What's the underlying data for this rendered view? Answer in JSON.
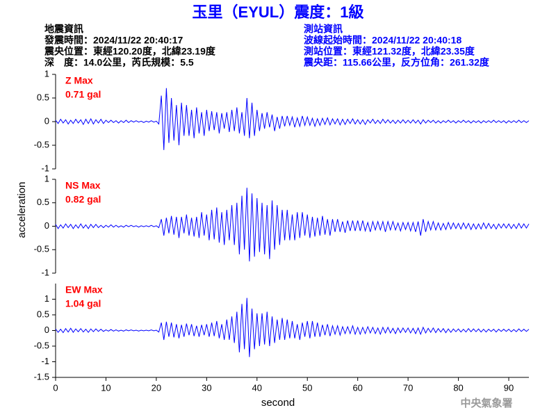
{
  "title": "玉里（EYUL）震度：1級",
  "info_left": [
    "地震資訊",
    "發震時間：2024/11/22 20:40:17",
    "震央位置：東經120.20度，北緯23.19度",
    "深　度：14.0公里，芮氏規模：5.5"
  ],
  "info_right": [
    "測站資訊",
    "波線起始時間：2024/11/22 20:40:18",
    "測站位置：東經121.32度，北緯23.35度",
    "震央距：115.66公里，反方位角：261.32度"
  ],
  "footer": "中央氣象署",
  "chart_data": {
    "type": "line",
    "xlabel": "second",
    "ylabel": "acceleration",
    "color": "#0000ff",
    "label_color": "#ff0000",
    "xlim": [
      0,
      94
    ],
    "xticks": [
      0,
      10,
      20,
      30,
      40,
      50,
      60,
      70,
      80,
      90
    ],
    "x": [
      0,
      0.5,
      1,
      1.5,
      2,
      2.5,
      3,
      3.5,
      4,
      4.5,
      5,
      5.5,
      6,
      6.5,
      7,
      7.5,
      8,
      8.5,
      9,
      9.5,
      10,
      10.5,
      11,
      11.5,
      12,
      12.5,
      13,
      13.5,
      14,
      14.5,
      15,
      15.5,
      16,
      16.5,
      17,
      17.5,
      18,
      18.5,
      19,
      19.5,
      20,
      20.5,
      21,
      21.5,
      22,
      22.5,
      23,
      23.5,
      24,
      24.5,
      25,
      25.5,
      26,
      26.5,
      27,
      27.5,
      28,
      28.5,
      29,
      29.5,
      30,
      30.5,
      31,
      31.5,
      32,
      32.5,
      33,
      33.5,
      34,
      34.5,
      35,
      35.5,
      36,
      36.5,
      37,
      37.5,
      38,
      38.5,
      39,
      39.5,
      40,
      40.5,
      41,
      41.5,
      42,
      42.5,
      43,
      43.5,
      44,
      44.5,
      45,
      45.5,
      46,
      46.5,
      47,
      47.5,
      48,
      48.5,
      49,
      49.5,
      50,
      50.5,
      51,
      51.5,
      52,
      52.5,
      53,
      53.5,
      54,
      54.5,
      55,
      55.5,
      56,
      56.5,
      57,
      57.5,
      58,
      58.5,
      59,
      59.5,
      60,
      60.5,
      61,
      61.5,
      62,
      62.5,
      63,
      63.5,
      64,
      64.5,
      65,
      65.5,
      66,
      66.5,
      67,
      67.5,
      68,
      68.5,
      69,
      69.5,
      70,
      70.5,
      71,
      71.5,
      72,
      72.5,
      73,
      73.5,
      74,
      74.5,
      75,
      75.5,
      76,
      76.5,
      77,
      77.5,
      78,
      78.5,
      79,
      79.5,
      80,
      80.5,
      81,
      81.5,
      82,
      82.5,
      83,
      83.5,
      84,
      84.5,
      85,
      85.5,
      86,
      86.5,
      87,
      87.5,
      88,
      88.5,
      89,
      89.5,
      90,
      90.5,
      91,
      91.5,
      92,
      92.5,
      93,
      93.5,
      94
    ],
    "panels": [
      {
        "label": "Z Max",
        "max_label": "0.71 gal",
        "ylim": [
          -1,
          1
        ],
        "yticks": [
          -1,
          -0.5,
          0,
          0.5,
          1
        ],
        "values": [
          0.03,
          -0.04,
          0.05,
          -0.03,
          0.04,
          -0.05,
          0.03,
          -0.04,
          0.05,
          -0.03,
          0.04,
          -0.06,
          0.05,
          -0.04,
          0.06,
          -0.05,
          0.04,
          -0.03,
          0.05,
          -0.04,
          0.03,
          -0.02,
          0.03,
          -0.02,
          0.02,
          -0.03,
          0.02,
          -0.02,
          0.03,
          -0.02,
          0.02,
          -0.01,
          0.02,
          -0.01,
          0.01,
          -0.02,
          0.01,
          -0.01,
          0.02,
          -0.01,
          0.01,
          -0.05,
          0.55,
          -0.6,
          0.71,
          -0.45,
          0.5,
          -0.4,
          0.35,
          -0.5,
          0.4,
          -0.3,
          0.35,
          -0.3,
          0.25,
          -0.35,
          0.3,
          -0.25,
          0.2,
          -0.3,
          0.25,
          -0.2,
          0.22,
          -0.18,
          0.2,
          -0.25,
          0.18,
          -0.15,
          0.2,
          -0.22,
          0.25,
          -0.2,
          0.3,
          -0.25,
          0.2,
          -0.3,
          0.5,
          -0.35,
          0.4,
          -0.3,
          0.25,
          -0.2,
          0.18,
          -0.15,
          0.2,
          -0.12,
          0.15,
          -0.2,
          0.1,
          -0.15,
          0.12,
          -0.1,
          0.12,
          -0.08,
          0.1,
          -0.12,
          0.08,
          -0.1,
          0.12,
          -0.08,
          0.1,
          -0.08,
          0.07,
          -0.1,
          0.06,
          -0.08,
          0.07,
          -0.06,
          0.08,
          -0.07,
          0.06,
          -0.05,
          0.06,
          -0.07,
          0.05,
          -0.06,
          0.05,
          -0.04,
          0.06,
          -0.05,
          0.04,
          -0.05,
          0.04,
          -0.06,
          0.04,
          -0.03,
          0.05,
          -0.04,
          0.03,
          -0.04,
          0.05,
          -0.03,
          0.04,
          -0.03,
          0.03,
          -0.04,
          0.03,
          -0.03,
          0.04,
          -0.03,
          0.03,
          -0.03,
          0.04,
          -0.03,
          0.03,
          -0.05,
          0.04,
          -0.03,
          0.03,
          -0.02,
          0.03,
          -0.03,
          0.02,
          -0.03,
          0.02,
          -0.02,
          0.03,
          -0.02,
          0.02,
          -0.03,
          0.02,
          -0.02,
          0.03,
          -0.02,
          0.02,
          -0.03,
          0.02,
          -0.02,
          0.02,
          -0.03,
          0.02,
          -0.02,
          0.02,
          -0.02,
          0.03,
          -0.02,
          0.02,
          -0.02,
          0.02,
          -0.03,
          0.02,
          -0.02,
          0.02,
          -0.02,
          0.03,
          -0.02,
          0.02,
          -0.02,
          0.02
        ]
      },
      {
        "label": "NS Max",
        "max_label": "0.82 gal",
        "ylim": [
          -1,
          1
        ],
        "yticks": [
          -1,
          -0.5,
          0,
          0.5,
          1
        ],
        "values": [
          0.04,
          -0.05,
          0.03,
          -0.04,
          0.05,
          -0.03,
          0.04,
          -0.05,
          0.03,
          -0.04,
          0.05,
          -0.04,
          0.03,
          -0.05,
          0.04,
          -0.03,
          0.04,
          -0.03,
          0.02,
          -0.03,
          0.02,
          -0.02,
          0.03,
          -0.02,
          0.02,
          -0.02,
          0.01,
          -0.02,
          0.02,
          -0.01,
          0.02,
          -0.01,
          0.01,
          -0.02,
          0.01,
          -0.01,
          0.01,
          -0.01,
          0.02,
          -0.01,
          0.01,
          -0.03,
          0.15,
          -0.2,
          0.18,
          -0.15,
          0.22,
          -0.18,
          0.2,
          -0.25,
          0.2,
          -0.15,
          0.25,
          -0.2,
          0.18,
          -0.22,
          0.2,
          -0.25,
          0.3,
          -0.2,
          0.25,
          -0.3,
          0.35,
          -0.28,
          0.4,
          -0.35,
          0.3,
          -0.4,
          0.35,
          -0.3,
          0.45,
          -0.4,
          0.5,
          -0.6,
          0.65,
          -0.5,
          0.82,
          -0.75,
          0.7,
          -0.65,
          0.6,
          -0.55,
          0.5,
          -0.6,
          0.45,
          -0.7,
          0.55,
          -0.5,
          0.45,
          -0.4,
          0.35,
          -0.3,
          0.35,
          -0.3,
          0.25,
          -0.3,
          0.3,
          -0.25,
          0.3,
          -0.2,
          0.25,
          -0.25,
          0.2,
          -0.22,
          0.18,
          -0.2,
          0.22,
          -0.18,
          0.15,
          -0.2,
          0.15,
          -0.12,
          0.15,
          -0.12,
          0.1,
          -0.14,
          0.12,
          -0.1,
          0.12,
          -0.1,
          0.12,
          -0.1,
          0.12,
          -0.1,
          0.08,
          -0.12,
          0.1,
          -0.08,
          0.1,
          -0.08,
          0.1,
          -0.12,
          0.1,
          -0.08,
          0.1,
          -0.08,
          0.07,
          -0.1,
          0.08,
          -0.07,
          0.08,
          -0.1,
          0.08,
          -0.12,
          0.1,
          -0.2,
          0.15,
          -0.12,
          0.1,
          -0.08,
          0.1,
          -0.08,
          0.07,
          -0.08,
          0.06,
          -0.07,
          0.08,
          -0.06,
          0.07,
          -0.05,
          0.06,
          -0.06,
          0.07,
          -0.05,
          0.06,
          -0.07,
          0.05,
          -0.06,
          0.05,
          -0.06,
          0.07,
          -0.05,
          0.06,
          -0.05,
          0.04,
          -0.06,
          0.05,
          -0.04,
          0.05,
          -0.04,
          0.05,
          -0.05,
          0.04,
          -0.05,
          0.06,
          -0.04,
          0.05,
          -0.04,
          0.05
        ]
      },
      {
        "label": "EW Max",
        "max_label": "1.04 gal",
        "ylim": [
          -1.5,
          1.5
        ],
        "yticks": [
          -1.5,
          -1,
          -0.5,
          0,
          0.5,
          1
        ],
        "values": [
          0.05,
          -0.06,
          0.04,
          -0.07,
          0.06,
          -0.05,
          0.07,
          -0.06,
          0.05,
          -0.04,
          0.06,
          -0.05,
          0.04,
          -0.06,
          0.05,
          -0.04,
          0.05,
          -0.03,
          0.04,
          -0.03,
          0.02,
          -0.02,
          0.03,
          -0.02,
          0.02,
          -0.02,
          0.01,
          -0.02,
          0.02,
          -0.01,
          0.02,
          -0.01,
          0.01,
          -0.02,
          0.01,
          -0.01,
          0.01,
          -0.01,
          0.02,
          -0.01,
          0.01,
          -0.05,
          0.25,
          -0.3,
          0.28,
          -0.2,
          0.25,
          -0.22,
          0.2,
          -0.25,
          0.18,
          -0.2,
          0.22,
          -0.15,
          0.2,
          -0.18,
          0.15,
          -0.2,
          0.18,
          -0.15,
          0.2,
          -0.2,
          0.25,
          -0.18,
          0.3,
          -0.25,
          0.2,
          -0.3,
          0.35,
          -0.3,
          0.45,
          -0.4,
          0.6,
          -0.7,
          0.85,
          -0.6,
          1.04,
          -0.85,
          0.7,
          -0.6,
          0.55,
          -0.5,
          0.55,
          -0.45,
          0.6,
          -0.5,
          0.45,
          -0.4,
          0.35,
          -0.3,
          0.4,
          -0.3,
          0.35,
          -0.25,
          0.3,
          -0.25,
          0.2,
          -0.3,
          0.25,
          -0.2,
          0.3,
          -0.25,
          0.3,
          -0.2,
          0.25,
          -0.2,
          0.18,
          -0.15,
          0.2,
          -0.18,
          0.15,
          -0.12,
          0.15,
          -0.15,
          0.12,
          -0.1,
          0.12,
          -0.1,
          0.15,
          -0.12,
          0.1,
          -0.12,
          0.1,
          -0.1,
          0.12,
          -0.08,
          0.1,
          -0.1,
          0.08,
          -0.12,
          0.1,
          -0.08,
          0.1,
          -0.08,
          0.07,
          -0.1,
          0.08,
          -0.07,
          0.08,
          -0.06,
          0.08,
          -0.08,
          0.07,
          -0.1,
          0.08,
          -0.12,
          0.1,
          -0.08,
          0.07,
          -0.06,
          0.08,
          -0.07,
          0.06,
          -0.05,
          0.06,
          -0.07,
          0.05,
          -0.06,
          0.05,
          -0.04,
          0.05,
          -0.05,
          0.04,
          -0.05,
          0.06,
          -0.04,
          0.05,
          -0.04,
          0.05,
          -0.05,
          0.04,
          -0.05,
          0.04,
          -0.03,
          0.04,
          -0.05,
          0.04,
          -0.03,
          0.04,
          -0.03,
          0.04,
          -0.04,
          0.03,
          -0.04,
          0.05,
          -0.03,
          0.04,
          -0.03,
          0.04
        ]
      }
    ]
  }
}
